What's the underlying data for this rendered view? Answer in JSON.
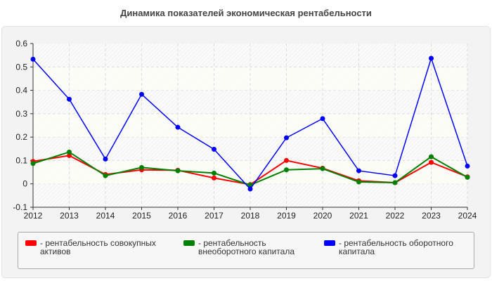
{
  "chart_data": {
    "type": "line",
    "title": "Динамика показателей экономическая рентабельности",
    "x": [
      2012,
      2013,
      2014,
      2015,
      2016,
      2017,
      2018,
      2019,
      2020,
      2021,
      2022,
      2023,
      2024
    ],
    "ylim": [
      -0.1,
      0.6
    ],
    "yticks": [
      "-0.1",
      "0",
      "0.1",
      "0.2",
      "0.3",
      "0.4",
      "0.5",
      "0.6"
    ],
    "grid": true,
    "legend_position": "bottom",
    "series": [
      {
        "name": "- рентабельность совокупных активов",
        "color": "#ff0000",
        "values": [
          0.096,
          0.121,
          0.04,
          0.06,
          0.058,
          0.025,
          -0.003,
          0.1,
          0.067,
          0.013,
          0.005,
          0.092,
          0.03
        ]
      },
      {
        "name": "- рентабельность внеоборотного капитала",
        "color": "#008000",
        "values": [
          0.087,
          0.136,
          0.035,
          0.07,
          0.056,
          0.046,
          -0.005,
          0.06,
          0.065,
          0.008,
          0.005,
          0.116,
          0.028
        ]
      },
      {
        "name": "- рентабельность оборотного капитала",
        "color": "#0000ff",
        "values": [
          0.533,
          0.362,
          0.106,
          0.383,
          0.242,
          0.148,
          -0.022,
          0.197,
          0.279,
          0.056,
          0.035,
          0.537,
          0.076
        ]
      }
    ]
  }
}
